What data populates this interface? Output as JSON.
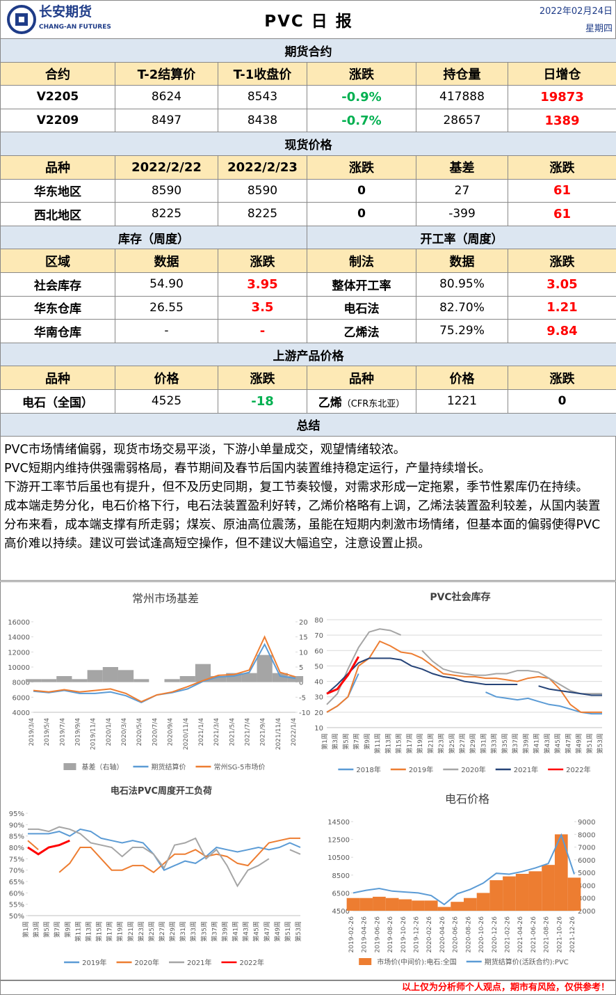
{
  "header": {
    "company": "长安期货",
    "company_en": "CHANG-AN FUTURES",
    "title": "PVC 日 报",
    "date": "2022年02月24日",
    "weekday": "星期四"
  },
  "futures": {
    "title": "期货合约",
    "columns": [
      "合约",
      "T-2结算价",
      "T-1收盘价",
      "涨跌",
      "持仓量",
      "日增仓"
    ],
    "rows": [
      [
        "V2205",
        "8624",
        "8543",
        "-0.9%",
        "417888",
        "19873"
      ],
      [
        "V2209",
        "8497",
        "8438",
        "-0.7%",
        "28657",
        "1389"
      ]
    ]
  },
  "spot": {
    "title": "现货价格",
    "columns": [
      "品种",
      "2022/2/22",
      "2022/2/23",
      "涨跌",
      "基差",
      "涨跌"
    ],
    "rows": [
      [
        "华东地区",
        "8590",
        "8590",
        "0",
        "27",
        "61"
      ],
      [
        "西北地区",
        "8225",
        "8225",
        "0",
        "-399",
        "61"
      ]
    ]
  },
  "inventory": {
    "title": "库存（周度）",
    "columns": [
      "区域",
      "数据",
      "涨跌"
    ],
    "rows": [
      [
        "社会库存",
        "54.90",
        "3.95"
      ],
      [
        "华东仓库",
        "26.55",
        "3.5"
      ],
      [
        "华南仓库",
        "-",
        "-"
      ]
    ]
  },
  "operating": {
    "title": "开工率（周度）",
    "columns": [
      "制法",
      "数据",
      "涨跌"
    ],
    "rows": [
      [
        "整体开工率",
        "80.95%",
        "3.05"
      ],
      [
        "电石法",
        "82.70%",
        "1.21"
      ],
      [
        "乙烯法",
        "75.29%",
        "9.84"
      ]
    ]
  },
  "upstream": {
    "title": "上游产品价格",
    "columns": [
      "品种",
      "价格",
      "涨跌",
      "品种",
      "价格",
      "涨跌"
    ],
    "rows": [
      [
        "电石（全国）",
        "4525",
        "-18",
        "乙烯",
        "1221",
        "0"
      ]
    ],
    "note": "（CFR东北亚）"
  },
  "summary": {
    "title": "总结",
    "paragraphs": [
      "PVC市场情绪偏弱，现货市场交易平淡，下游小单量成交，观望情绪较浓。",
      "PVC短期内维持供强需弱格局，春节期间及春节后国内装置维持稳定运行，产量持续增长。",
      "下游开工率节后虽也有提升，但不及历史同期，复工节奏较慢，对需求形成一定拖累，季节性累库仍在持续。",
      "成本端走势分化，电石价格下行，电石法装置盈利好转，乙烯价格略有上调，乙烯法装置盈利较差，从国内装置分布来看，成本端支撑有所走弱；煤炭、原油高位震荡，虽能在短期内刺激市场情绪，但基本面的偏弱使得PVC高价难以持续。建议可尝试逢高短空操作，但不建议大幅追空，注意设置止损。"
    ]
  },
  "chart_data": [
    {
      "type": "line",
      "title": "常州市场基差",
      "categories": [
        "2019/3/4",
        "2019/5/4",
        "2019/7/4",
        "2019/9/4",
        "2019/11/4",
        "2020/1/4",
        "2020/3/4",
        "2020/5/4",
        "2020/7/4",
        "2020/9/4",
        "2020/11/4",
        "2021/1/4",
        "2021/3/4",
        "2021/5/4",
        "2021/7/4",
        "2021/9/4",
        "2021/11/4",
        "2022/1/4"
      ],
      "ylim": [
        4000,
        16000
      ],
      "yticks": [
        4000,
        6000,
        8000,
        10000,
        12000,
        14000,
        16000
      ],
      "y2lim": [
        -10,
        20
      ],
      "y2ticks": [
        -10,
        -5,
        0,
        5,
        10,
        15,
        20
      ],
      "grid": false,
      "series": [
        {
          "name": "基差（右轴）",
          "type": "bar",
          "axis": "y2",
          "color": "#a5a5a5",
          "values": [
            1,
            1,
            2,
            1,
            4,
            5,
            4,
            1,
            0,
            1,
            2,
            6,
            2,
            3,
            3,
            9,
            3,
            2
          ]
        },
        {
          "name": "期货结算价",
          "color": "#5b9bd5",
          "values": [
            6800,
            6600,
            6900,
            6500,
            6500,
            6700,
            6200,
            5300,
            6300,
            6600,
            7100,
            8100,
            8700,
            8800,
            9300,
            13000,
            8800,
            8500
          ]
        },
        {
          "name": "常州SG-5市场价",
          "color": "#ed7d31",
          "values": [
            6900,
            6700,
            7000,
            6700,
            6900,
            7100,
            6500,
            5400,
            6300,
            6700,
            7400,
            8200,
            8900,
            9000,
            9600,
            14000,
            9300,
            8700
          ]
        }
      ]
    },
    {
      "type": "line",
      "title": "PVC社会库存",
      "categories": [
        "第1周",
        "第3周",
        "第5周",
        "第7周",
        "第9周",
        "第11周",
        "第13周",
        "第15周",
        "第17周",
        "第19周",
        "第21周",
        "第23周",
        "第25周",
        "第27周",
        "第29周",
        "第31周",
        "第33周",
        "第35周",
        "第37周",
        "第39周",
        "第41周",
        "第43周",
        "第45周",
        "第47周",
        "第49周",
        "第51周",
        "第53周"
      ],
      "ylim": [
        10,
        80
      ],
      "yticks": [
        10,
        20,
        30,
        40,
        50,
        60,
        70,
        80
      ],
      "grid": true,
      "series": [
        {
          "name": "2018年",
          "color": "#5b9bd5",
          "values": [
            20,
            24,
            30,
            45,
            null,
            null,
            null,
            null,
            null,
            null,
            null,
            null,
            null,
            null,
            null,
            33,
            30,
            29,
            28,
            29,
            27,
            25,
            24,
            22,
            20,
            19,
            19
          ]
        },
        {
          "name": "2019年",
          "color": "#ed7d31",
          "values": [
            20,
            24,
            30,
            50,
            55,
            66,
            63,
            59,
            58,
            55,
            50,
            45,
            44,
            43,
            43,
            42,
            42,
            41,
            40,
            42,
            43,
            42,
            35,
            25,
            20,
            20,
            20
          ]
        },
        {
          "name": "2020年",
          "color": "#a5a5a5",
          "values": [
            25,
            32,
            48,
            62,
            72,
            74,
            73,
            70,
            null,
            60,
            53,
            48,
            46,
            45,
            44,
            44,
            45,
            45,
            47,
            47,
            46,
            42,
            38,
            34,
            32,
            32,
            32
          ]
        },
        {
          "name": "2021年",
          "color": "#264478",
          "values": [
            32,
            38,
            45,
            52,
            55,
            55,
            55,
            54,
            50,
            48,
            45,
            43,
            42,
            40,
            39,
            38,
            38,
            38,
            38,
            null,
            37,
            35,
            34,
            33,
            32,
            31,
            31
          ]
        },
        {
          "name": "2022年",
          "color": "#ff0000",
          "values": [
            32,
            35,
            44,
            56,
            null,
            null,
            null,
            null,
            null,
            null,
            null,
            null,
            null,
            null,
            null,
            null,
            null,
            null,
            null,
            null,
            null,
            null,
            null,
            null,
            null,
            null,
            null
          ]
        }
      ]
    },
    {
      "type": "line",
      "title": "电石法PVC周度开工负荷",
      "categories": [
        "第1周",
        "第3周",
        "第5周",
        "第7周",
        "第9周",
        "第11周",
        "第13周",
        "第15周",
        "第17周",
        "第19周",
        "第21周",
        "第23周",
        "第25周",
        "第27周",
        "第29周",
        "第31周",
        "第33周",
        "第35周",
        "第37周",
        "第39周",
        "第41周",
        "第43周",
        "第45周",
        "第47周",
        "第49周",
        "第51周",
        "第53周"
      ],
      "ylim": [
        50,
        95
      ],
      "yticks": [
        {
          "value": 50,
          "label": "50%"
        },
        {
          "value": 55,
          "label": "55%"
        },
        {
          "value": 60,
          "label": "60%"
        },
        {
          "value": 65,
          "label": "65%"
        },
        {
          "value": 70,
          "label": "70%"
        },
        {
          "value": 75,
          "label": "75%"
        },
        {
          "value": 80,
          "label": "80%"
        },
        {
          "value": 85,
          "label": "85%"
        },
        {
          "value": 90,
          "label": "90%"
        },
        {
          "value": 95,
          "label": "95%"
        }
      ],
      "grid": false,
      "series": [
        {
          "name": "2019年",
          "color": "#5b9bd5",
          "values": [
            86,
            86,
            86,
            87,
            85,
            88,
            87,
            84,
            83,
            82,
            83,
            82,
            77,
            70,
            72,
            74,
            73,
            76,
            80,
            79,
            78,
            79,
            80,
            79,
            80,
            82,
            80
          ]
        },
        {
          "name": "2020年",
          "color": "#ed7d31",
          "values": [
            83,
            79,
            null,
            69,
            73,
            80,
            80,
            75,
            70,
            70,
            72,
            72,
            69,
            73,
            77,
            77,
            79,
            76,
            77,
            76,
            73,
            72,
            77,
            82,
            83,
            84,
            84
          ]
        },
        {
          "name": "2021年",
          "color": "#a5a5a5",
          "values": [
            88,
            88,
            87,
            89,
            88,
            86,
            82,
            81,
            80,
            76,
            80,
            80,
            77,
            71,
            81,
            82,
            84,
            75,
            79,
            72,
            63,
            70,
            72,
            75,
            null,
            79,
            77
          ]
        },
        {
          "name": "2022年",
          "color": "#ff0000",
          "values": [
            80,
            77,
            80,
            81,
            83,
            null,
            null,
            null,
            null,
            null,
            null,
            null,
            null,
            null,
            null,
            null,
            null,
            null,
            null,
            null,
            null,
            null,
            null,
            null,
            null,
            null,
            null
          ]
        }
      ]
    },
    {
      "type": "line",
      "title": "电石价格",
      "categories": [
        "2019-02-26",
        "2019-04-26",
        "2019-06-26",
        "2019-08-26",
        "2019-10-26",
        "2019-12-26",
        "2020-02-26",
        "2020-04-26",
        "2020-06-26",
        "2020-08-26",
        "2020-10-26",
        "2020-12-26",
        "2021-02-26",
        "2021-04-26",
        "2021-06-26",
        "2021-08-26",
        "2021-10-26",
        "2021-12-26"
      ],
      "ylim": [
        4500,
        14500
      ],
      "yticks": [
        4500,
        6500,
        8500,
        10500,
        12500,
        14500
      ],
      "y2lim": [
        2000,
        9000
      ],
      "y2ticks": [
        2000,
        3000,
        4000,
        5000,
        6000,
        7000,
        8000,
        9000
      ],
      "grid": false,
      "series": [
        {
          "name": "市场价(中间价):电石:全国",
          "type": "bar",
          "axis": "y2",
          "color": "#ed7d31",
          "values": [
            3000,
            3000,
            3100,
            3000,
            2900,
            2800,
            2800,
            2300,
            2700,
            3000,
            3400,
            4400,
            4700,
            4900,
            5100,
            5600,
            8000,
            4600
          ]
        },
        {
          "name": "期货结算价(活跃合约):PVC",
          "color": "#5b9bd5",
          "values": [
            6500,
            6800,
            7000,
            6700,
            6600,
            6500,
            6200,
            5200,
            6400,
            6900,
            7600,
            8700,
            8600,
            8900,
            9300,
            9800,
            13000,
            8600
          ]
        }
      ]
    }
  ],
  "footer": "以上仅为分析师个人观点，期市有风险，仅供参考！"
}
